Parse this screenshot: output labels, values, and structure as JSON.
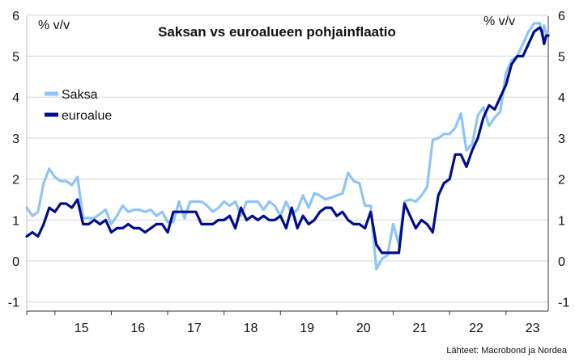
{
  "chart_data": {
    "type": "line",
    "title": "Saksan vs euroalueen pohjainflaatio",
    "left_unit": "% v/v",
    "right_unit": "% v/v",
    "source": "Lähteet: Macrobond ja Nordea",
    "ylim": [
      -1,
      6
    ],
    "yticks": [
      -1,
      0,
      1,
      2,
      3,
      4,
      5,
      6
    ],
    "xlim": [
      2014.5,
      2023.75
    ],
    "year_labels": [
      "15",
      "16",
      "17",
      "18",
      "19",
      "20",
      "21",
      "22",
      "23"
    ],
    "legend_position": "top-left",
    "series": [
      {
        "name": "Saksa",
        "color": "#8ec5f5",
        "x": [
          2014.5,
          2014.6,
          2014.7,
          2014.8,
          2014.9,
          2015.0,
          2015.1,
          2015.2,
          2015.3,
          2015.4,
          2015.5,
          2015.6,
          2015.7,
          2015.8,
          2015.9,
          2016.0,
          2016.1,
          2016.2,
          2016.3,
          2016.4,
          2016.5,
          2016.6,
          2016.7,
          2016.8,
          2016.9,
          2017.0,
          2017.1,
          2017.2,
          2017.3,
          2017.4,
          2017.5,
          2017.6,
          2017.7,
          2017.8,
          2017.9,
          2018.0,
          2018.1,
          2018.2,
          2018.3,
          2018.4,
          2018.5,
          2018.6,
          2018.7,
          2018.8,
          2018.9,
          2019.0,
          2019.1,
          2019.2,
          2019.3,
          2019.4,
          2019.5,
          2019.6,
          2019.7,
          2019.8,
          2019.9,
          2020.0,
          2020.1,
          2020.2,
          2020.3,
          2020.4,
          2020.5,
          2020.6,
          2020.7,
          2020.8,
          2020.9,
          2021.0,
          2021.1,
          2021.2,
          2021.3,
          2021.4,
          2021.5,
          2021.6,
          2021.7,
          2021.8,
          2021.9,
          2022.0,
          2022.1,
          2022.2,
          2022.3,
          2022.4,
          2022.5,
          2022.6,
          2022.7,
          2022.8,
          2022.9,
          2023.0,
          2023.1,
          2023.2,
          2023.3,
          2023.4,
          2023.5,
          2023.6
        ],
        "values": [
          1.3,
          1.1,
          1.2,
          1.9,
          2.25,
          2.05,
          1.95,
          1.95,
          1.85,
          2.05,
          1.05,
          1.05,
          1.05,
          1.15,
          1.25,
          0.9,
          1.1,
          1.35,
          1.2,
          1.25,
          1.25,
          1.2,
          1.25,
          1.1,
          1.2,
          0.95,
          0.95,
          1.45,
          1.05,
          1.45,
          1.45,
          1.45,
          1.35,
          1.2,
          1.3,
          1.45,
          1.35,
          1.45,
          1.1,
          1.45,
          1.45,
          1.45,
          1.25,
          1.45,
          1.35,
          1.1,
          1.45,
          1.15,
          1.25,
          1.6,
          1.3,
          1.65,
          1.6,
          1.5,
          1.55,
          1.6,
          1.65,
          2.15,
          1.95,
          1.9,
          1.35,
          1.35,
          -0.2,
          0.05,
          0.15,
          0.9,
          0.4,
          1.45,
          1.5,
          1.45,
          1.6,
          1.8,
          2.95,
          3.0,
          3.1,
          3.1,
          3.25,
          3.6,
          2.7,
          2.85,
          3.55,
          3.75,
          3.3,
          3.5,
          3.65,
          4.6,
          4.9,
          5.0,
          5.3,
          5.6,
          5.8,
          5.8
        ],
        "tail": [
          5.5,
          5.75,
          5.55,
          5.55
        ]
      },
      {
        "name": "euroalue",
        "color": "#000e8a",
        "x": [
          2014.5,
          2014.6,
          2014.7,
          2014.8,
          2014.9,
          2015.0,
          2015.1,
          2015.2,
          2015.3,
          2015.4,
          2015.5,
          2015.6,
          2015.7,
          2015.8,
          2015.9,
          2016.0,
          2016.1,
          2016.2,
          2016.3,
          2016.4,
          2016.5,
          2016.6,
          2016.7,
          2016.8,
          2016.9,
          2017.0,
          2017.1,
          2017.2,
          2017.3,
          2017.4,
          2017.5,
          2017.6,
          2017.7,
          2017.8,
          2017.9,
          2018.0,
          2018.1,
          2018.2,
          2018.3,
          2018.4,
          2018.5,
          2018.6,
          2018.7,
          2018.8,
          2018.9,
          2019.0,
          2019.1,
          2019.2,
          2019.3,
          2019.4,
          2019.5,
          2019.6,
          2019.7,
          2019.8,
          2019.9,
          2020.0,
          2020.1,
          2020.2,
          2020.3,
          2020.4,
          2020.5,
          2020.6,
          2020.7,
          2020.8,
          2020.9,
          2021.0,
          2021.1,
          2021.2,
          2021.3,
          2021.4,
          2021.5,
          2021.6,
          2021.7,
          2021.8,
          2021.9,
          2022.0,
          2022.1,
          2022.2,
          2022.3,
          2022.4,
          2022.5,
          2022.6,
          2022.7,
          2022.8,
          2022.9,
          2023.0,
          2023.1,
          2023.2,
          2023.3,
          2023.4,
          2023.5,
          2023.6
        ],
        "values": [
          0.6,
          0.7,
          0.6,
          0.9,
          1.3,
          1.2,
          1.4,
          1.4,
          1.3,
          1.5,
          0.9,
          0.9,
          1.0,
          0.9,
          1.0,
          0.7,
          0.8,
          0.8,
          0.9,
          0.8,
          0.8,
          0.7,
          0.8,
          0.9,
          0.9,
          0.7,
          1.2,
          1.2,
          1.2,
          1.2,
          1.2,
          0.9,
          0.9,
          0.9,
          1.0,
          1.0,
          1.1,
          0.8,
          1.3,
          1.0,
          1.1,
          1.0,
          1.1,
          1.0,
          1.0,
          1.1,
          0.8,
          1.3,
          0.8,
          1.1,
          0.9,
          1.0,
          1.2,
          1.3,
          1.3,
          1.1,
          1.2,
          1.0,
          0.9,
          0.9,
          0.8,
          1.2,
          0.4,
          0.2,
          0.2,
          0.2,
          0.2,
          1.4,
          1.1,
          0.8,
          1.0,
          0.9,
          0.7,
          1.6,
          1.9,
          2.0,
          2.6,
          2.6,
          2.3,
          2.7,
          3.0,
          3.5,
          3.8,
          3.7,
          4.0,
          4.3,
          4.8,
          5.0,
          5.0,
          5.3,
          5.6,
          5.7
        ],
        "tail": [
          5.6,
          5.3,
          5.5,
          5.5
        ]
      }
    ]
  }
}
